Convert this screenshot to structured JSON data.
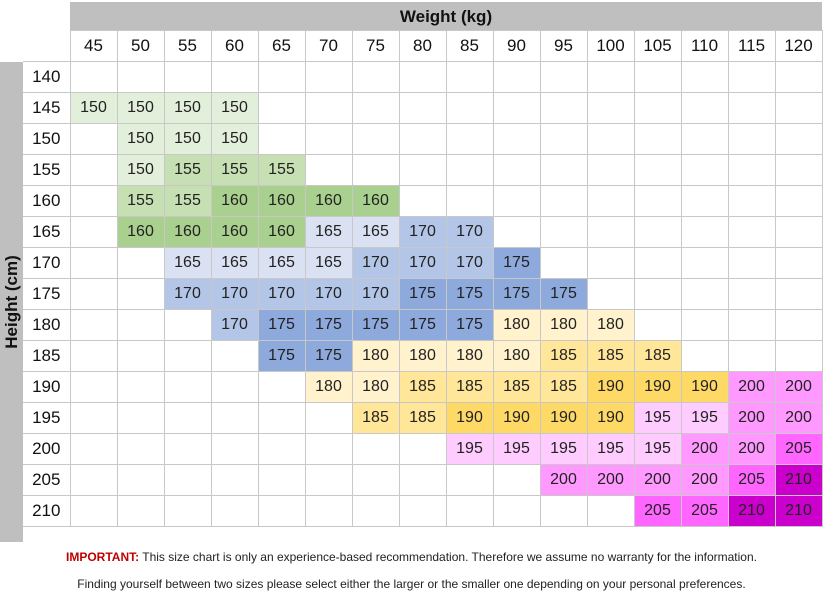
{
  "weight_title": "Weight (kg)",
  "height_title": "Height (cm)",
  "weights": [
    "45",
    "50",
    "55",
    "60",
    "65",
    "70",
    "75",
    "80",
    "85",
    "90",
    "95",
    "100",
    "105",
    "110",
    "115",
    "120"
  ],
  "rows": [
    {
      "height": "140",
      "cells": [
        null,
        null,
        null,
        null,
        null,
        null,
        null,
        null,
        null,
        null,
        null,
        null,
        null,
        null,
        null,
        null
      ]
    },
    {
      "height": "145",
      "cells": [
        "150",
        "150",
        "150",
        "150",
        null,
        null,
        null,
        null,
        null,
        null,
        null,
        null,
        null,
        null,
        null,
        null
      ]
    },
    {
      "height": "150",
      "cells": [
        null,
        "150",
        "150",
        "150",
        null,
        null,
        null,
        null,
        null,
        null,
        null,
        null,
        null,
        null,
        null,
        null
      ]
    },
    {
      "height": "155",
      "cells": [
        null,
        "150",
        "155",
        "155",
        "155",
        null,
        null,
        null,
        null,
        null,
        null,
        null,
        null,
        null,
        null,
        null
      ]
    },
    {
      "height": "160",
      "cells": [
        null,
        "155",
        "155",
        "160",
        "160",
        "160",
        "160",
        null,
        null,
        null,
        null,
        null,
        null,
        null,
        null,
        null
      ]
    },
    {
      "height": "165",
      "cells": [
        null,
        "160",
        "160",
        "160",
        "160",
        "165",
        "165",
        "170",
        "170",
        null,
        null,
        null,
        null,
        null,
        null,
        null
      ]
    },
    {
      "height": "170",
      "cells": [
        null,
        null,
        "165",
        "165",
        "165",
        "165",
        "170",
        "170",
        "170",
        "175",
        null,
        null,
        null,
        null,
        null,
        null
      ]
    },
    {
      "height": "175",
      "cells": [
        null,
        null,
        "170",
        "170",
        "170",
        "170",
        "170",
        "175",
        "175",
        "175",
        "175",
        null,
        null,
        null,
        null,
        null
      ]
    },
    {
      "height": "180",
      "cells": [
        null,
        null,
        null,
        "170",
        "175",
        "175",
        "175",
        "175",
        "175",
        "180",
        "180",
        "180",
        null,
        null,
        null,
        null
      ]
    },
    {
      "height": "185",
      "cells": [
        null,
        null,
        null,
        null,
        "175",
        "175",
        "180",
        "180",
        "180",
        "180",
        "185",
        "185",
        "185",
        null,
        null,
        null
      ]
    },
    {
      "height": "190",
      "cells": [
        null,
        null,
        null,
        null,
        null,
        "180",
        "180",
        "185",
        "185",
        "185",
        "185",
        "190",
        "190",
        "190",
        "200",
        "200"
      ]
    },
    {
      "height": "195",
      "cells": [
        null,
        null,
        null,
        null,
        null,
        null,
        "185",
        "185",
        "190",
        "190",
        "190",
        "190",
        "195",
        "195",
        "200",
        "200"
      ]
    },
    {
      "height": "200",
      "cells": [
        null,
        null,
        null,
        null,
        null,
        null,
        null,
        null,
        "195",
        "195",
        "195",
        "195",
        "195",
        "200",
        "200",
        "205"
      ]
    },
    {
      "height": "205",
      "cells": [
        null,
        null,
        null,
        null,
        null,
        null,
        null,
        null,
        null,
        null,
        "200",
        "200",
        "200",
        "200",
        "205",
        "210"
      ]
    },
    {
      "height": "210",
      "cells": [
        null,
        null,
        null,
        null,
        null,
        null,
        null,
        null,
        null,
        null,
        null,
        null,
        "205",
        "205",
        "210",
        "210"
      ]
    }
  ],
  "size_colors": {
    "150": "#e2efda",
    "155": "#c6e0b4",
    "160": "#a9d08e",
    "165": "#d9e1f2",
    "170": "#b4c6e7",
    "175": "#8ea9db",
    "180": "#fff2cc",
    "185": "#ffe699",
    "190": "#ffd966",
    "195": "#ffccff",
    "200": "#ff99ff",
    "205": "#ff66ff",
    "210": "#cc00cc"
  },
  "notes": {
    "important_label": "IMPORTANT:",
    "important_text": " This size chart is only an experience-based recommendation. Therefore we assume no warranty for the information.",
    "second": "Finding yourself between two sizes please select either the larger or the smaller one depending on your personal preferences."
  }
}
